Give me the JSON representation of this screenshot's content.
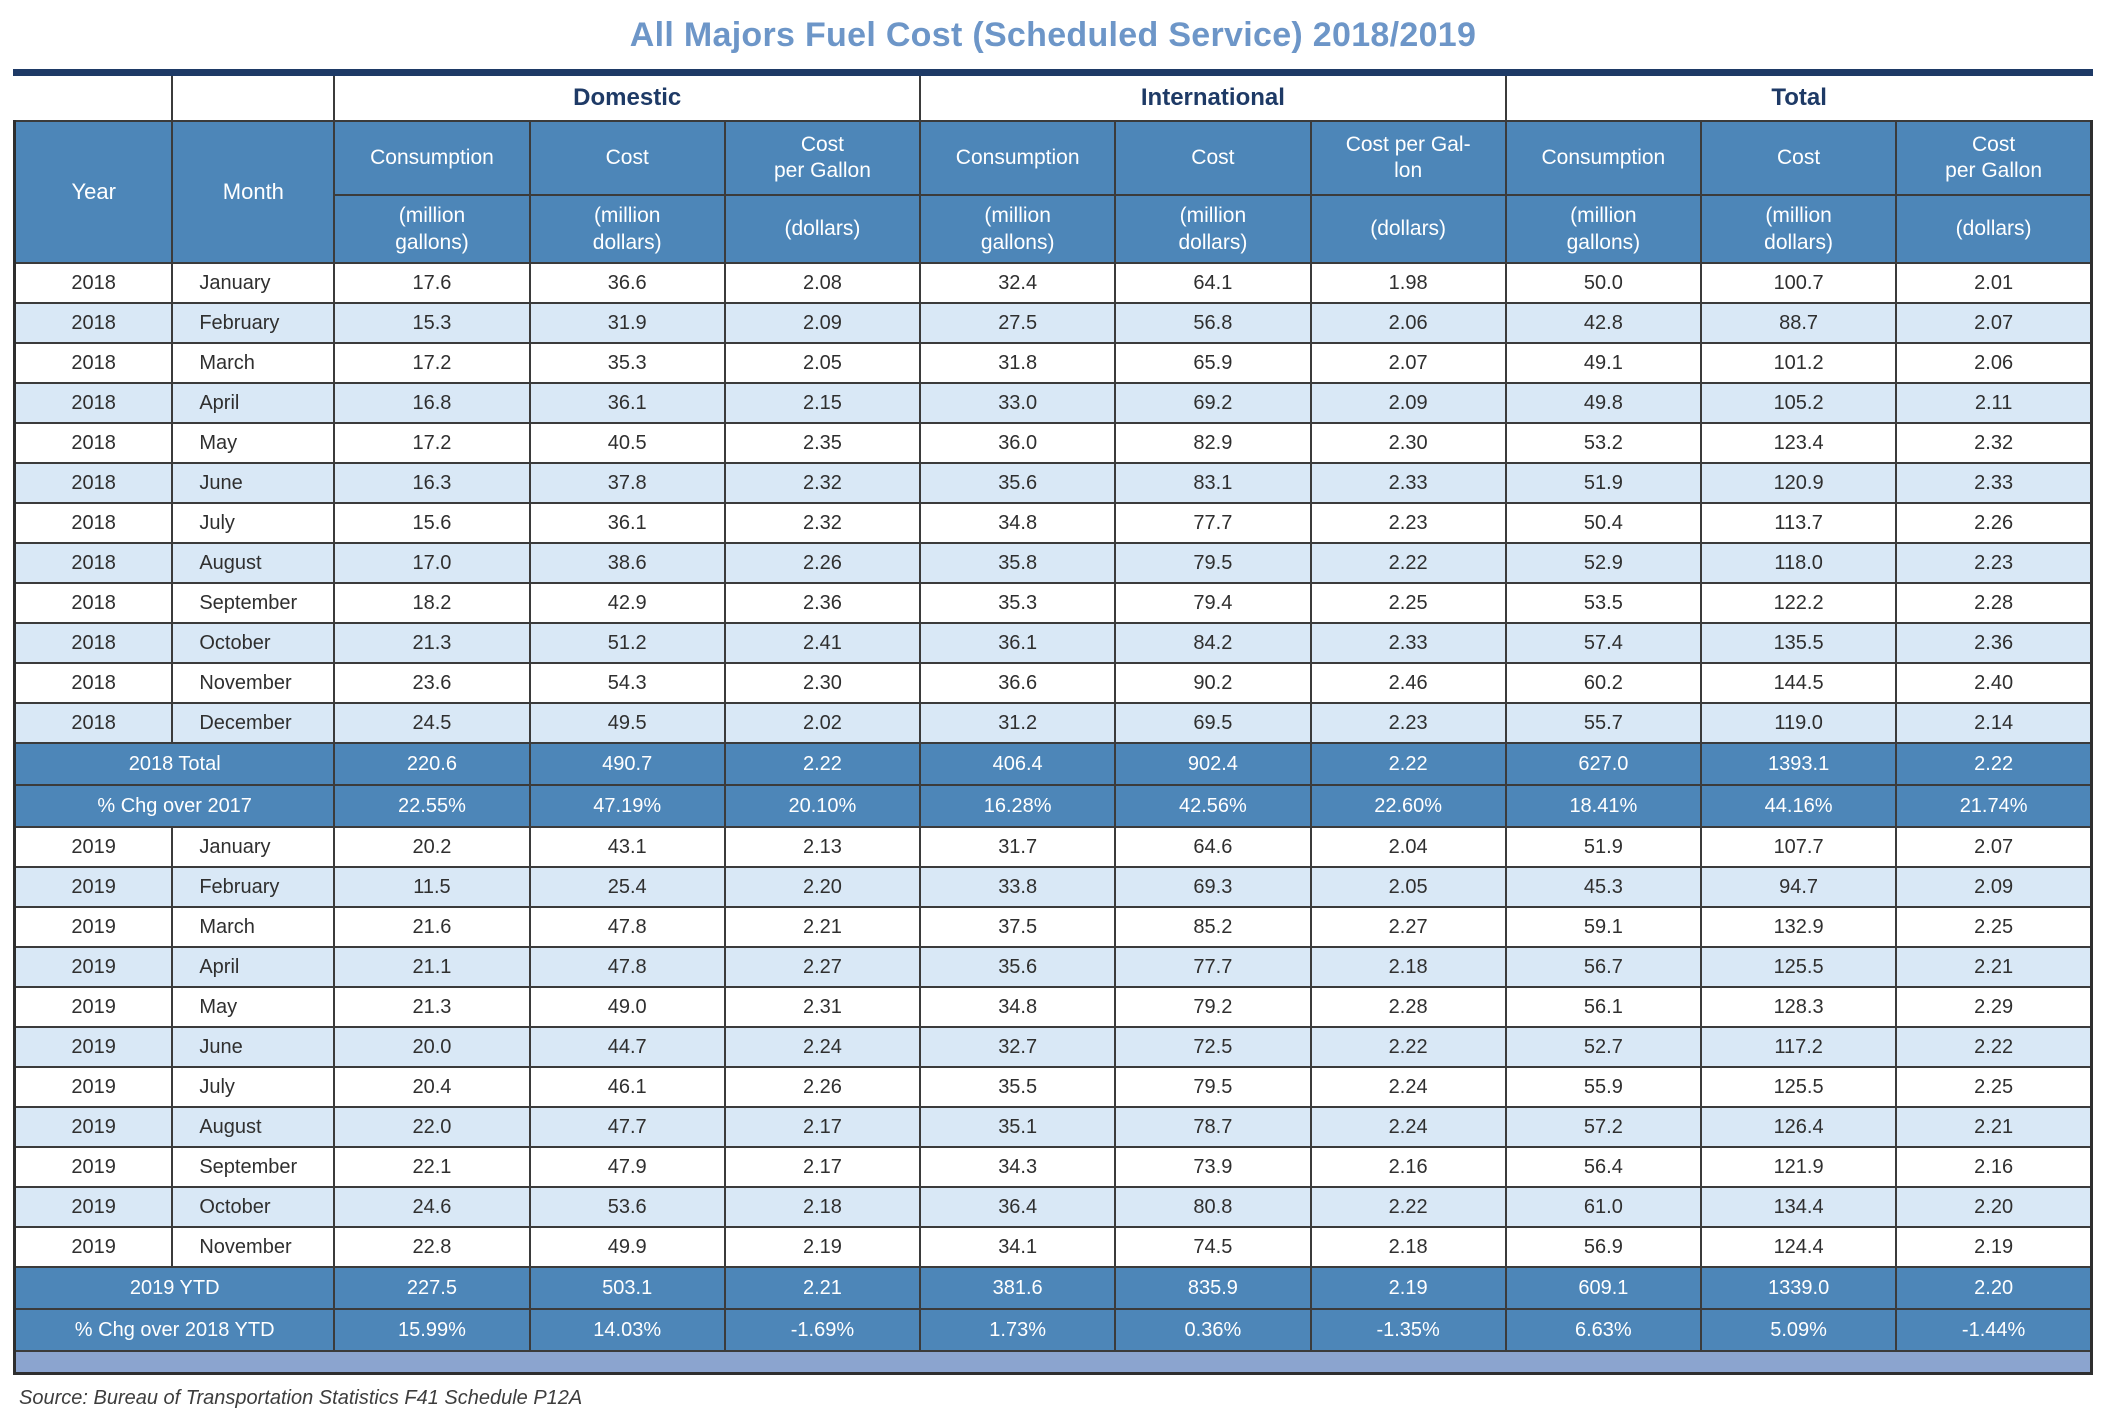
{
  "title": "All Majors Fuel Cost (Scheduled Service) 2018/2019",
  "source": "Source: Bureau of Transportation Statistics F41 Schedule P12A",
  "colors": {
    "title_blue": "#6d96c8",
    "navy": "#1e3a66",
    "header_blue": "#4d86b8",
    "alt_row_blue": "#d9e8f6",
    "footer_bar_blue": "#8ba4cf"
  },
  "table": {
    "groups": [
      "Domestic",
      "International",
      "Total"
    ],
    "row_headers": [
      "Year",
      "Month"
    ],
    "col_labels": [
      "Consumption",
      "Cost",
      "Cost\nper Gallon",
      "Consumption",
      "Cost",
      "Cost per Gal-\nlon",
      "Consumption",
      "Cost",
      "Cost\nper Gallon"
    ],
    "col_units": [
      "(million\ngallons)",
      "(million\ndollars)",
      "(dollars)",
      "(million\ngallons)",
      "(million\ndollars)",
      "(dollars)",
      "(million\ngallons)",
      "(million\ndollars)",
      "(dollars)"
    ],
    "rows": [
      {
        "type": "data",
        "year": "2018",
        "month": "January",
        "values": [
          "17.6",
          "36.6",
          "2.08",
          "32.4",
          "64.1",
          "1.98",
          "50.0",
          "100.7",
          "2.01"
        ]
      },
      {
        "type": "data",
        "year": "2018",
        "month": "February",
        "values": [
          "15.3",
          "31.9",
          "2.09",
          "27.5",
          "56.8",
          "2.06",
          "42.8",
          "88.7",
          "2.07"
        ]
      },
      {
        "type": "data",
        "year": "2018",
        "month": "March",
        "values": [
          "17.2",
          "35.3",
          "2.05",
          "31.8",
          "65.9",
          "2.07",
          "49.1",
          "101.2",
          "2.06"
        ]
      },
      {
        "type": "data",
        "year": "2018",
        "month": "April",
        "values": [
          "16.8",
          "36.1",
          "2.15",
          "33.0",
          "69.2",
          "2.09",
          "49.8",
          "105.2",
          "2.11"
        ]
      },
      {
        "type": "data",
        "year": "2018",
        "month": "May",
        "values": [
          "17.2",
          "40.5",
          "2.35",
          "36.0",
          "82.9",
          "2.30",
          "53.2",
          "123.4",
          "2.32"
        ]
      },
      {
        "type": "data",
        "year": "2018",
        "month": "June",
        "values": [
          "16.3",
          "37.8",
          "2.32",
          "35.6",
          "83.1",
          "2.33",
          "51.9",
          "120.9",
          "2.33"
        ]
      },
      {
        "type": "data",
        "year": "2018",
        "month": "July",
        "values": [
          "15.6",
          "36.1",
          "2.32",
          "34.8",
          "77.7",
          "2.23",
          "50.4",
          "113.7",
          "2.26"
        ]
      },
      {
        "type": "data",
        "year": "2018",
        "month": "August",
        "values": [
          "17.0",
          "38.6",
          "2.26",
          "35.8",
          "79.5",
          "2.22",
          "52.9",
          "118.0",
          "2.23"
        ]
      },
      {
        "type": "data",
        "year": "2018",
        "month": "September",
        "values": [
          "18.2",
          "42.9",
          "2.36",
          "35.3",
          "79.4",
          "2.25",
          "53.5",
          "122.2",
          "2.28"
        ]
      },
      {
        "type": "data",
        "year": "2018",
        "month": "October",
        "values": [
          "21.3",
          "51.2",
          "2.41",
          "36.1",
          "84.2",
          "2.33",
          "57.4",
          "135.5",
          "2.36"
        ]
      },
      {
        "type": "data",
        "year": "2018",
        "month": "November",
        "values": [
          "23.6",
          "54.3",
          "2.30",
          "36.6",
          "90.2",
          "2.46",
          "60.2",
          "144.5",
          "2.40"
        ]
      },
      {
        "type": "data",
        "year": "2018",
        "month": "December",
        "values": [
          "24.5",
          "49.5",
          "2.02",
          "31.2",
          "69.5",
          "2.23",
          "55.7",
          "119.0",
          "2.14"
        ]
      },
      {
        "type": "summary",
        "label": "2018 Total",
        "values": [
          "220.6",
          "490.7",
          "2.22",
          "406.4",
          "902.4",
          "2.22",
          "627.0",
          "1393.1",
          "2.22"
        ]
      },
      {
        "type": "summary",
        "label": "% Chg over 2017",
        "values": [
          "22.55%",
          "47.19%",
          "20.10%",
          "16.28%",
          "42.56%",
          "22.60%",
          "18.41%",
          "44.16%",
          "21.74%"
        ]
      },
      {
        "type": "data",
        "year": "2019",
        "month": "January",
        "values": [
          "20.2",
          "43.1",
          "2.13",
          "31.7",
          "64.6",
          "2.04",
          "51.9",
          "107.7",
          "2.07"
        ]
      },
      {
        "type": "data",
        "year": "2019",
        "month": "February",
        "values": [
          "11.5",
          "25.4",
          "2.20",
          "33.8",
          "69.3",
          "2.05",
          "45.3",
          "94.7",
          "2.09"
        ]
      },
      {
        "type": "data",
        "year": "2019",
        "month": "March",
        "values": [
          "21.6",
          "47.8",
          "2.21",
          "37.5",
          "85.2",
          "2.27",
          "59.1",
          "132.9",
          "2.25"
        ]
      },
      {
        "type": "data",
        "year": "2019",
        "month": "April",
        "values": [
          "21.1",
          "47.8",
          "2.27",
          "35.6",
          "77.7",
          "2.18",
          "56.7",
          "125.5",
          "2.21"
        ]
      },
      {
        "type": "data",
        "year": "2019",
        "month": "May",
        "values": [
          "21.3",
          "49.0",
          "2.31",
          "34.8",
          "79.2",
          "2.28",
          "56.1",
          "128.3",
          "2.29"
        ]
      },
      {
        "type": "data",
        "year": "2019",
        "month": "June",
        "values": [
          "20.0",
          "44.7",
          "2.24",
          "32.7",
          "72.5",
          "2.22",
          "52.7",
          "117.2",
          "2.22"
        ]
      },
      {
        "type": "data",
        "year": "2019",
        "month": "July",
        "values": [
          "20.4",
          "46.1",
          "2.26",
          "35.5",
          "79.5",
          "2.24",
          "55.9",
          "125.5",
          "2.25"
        ]
      },
      {
        "type": "data",
        "year": "2019",
        "month": "August",
        "values": [
          "22.0",
          "47.7",
          "2.17",
          "35.1",
          "78.7",
          "2.24",
          "57.2",
          "126.4",
          "2.21"
        ]
      },
      {
        "type": "data",
        "year": "2019",
        "month": "September",
        "values": [
          "22.1",
          "47.9",
          "2.17",
          "34.3",
          "73.9",
          "2.16",
          "56.4",
          "121.9",
          "2.16"
        ]
      },
      {
        "type": "data",
        "year": "2019",
        "month": "October",
        "values": [
          "24.6",
          "53.6",
          "2.18",
          "36.4",
          "80.8",
          "2.22",
          "61.0",
          "134.4",
          "2.20"
        ]
      },
      {
        "type": "data",
        "year": "2019",
        "month": "November",
        "values": [
          "22.8",
          "49.9",
          "2.19",
          "34.1",
          "74.5",
          "2.18",
          "56.9",
          "124.4",
          "2.19"
        ]
      },
      {
        "type": "summary",
        "label": "2019 YTD",
        "values": [
          "227.5",
          "503.1",
          "2.21",
          "381.6",
          "835.9",
          "2.19",
          "609.1",
          "1339.0",
          "2.20"
        ]
      },
      {
        "type": "summary",
        "label": "% Chg over 2018 YTD",
        "values": [
          "15.99%",
          "14.03%",
          "-1.69%",
          "1.73%",
          "0.36%",
          "-1.35%",
          "6.63%",
          "5.09%",
          "-1.44%"
        ]
      }
    ]
  }
}
